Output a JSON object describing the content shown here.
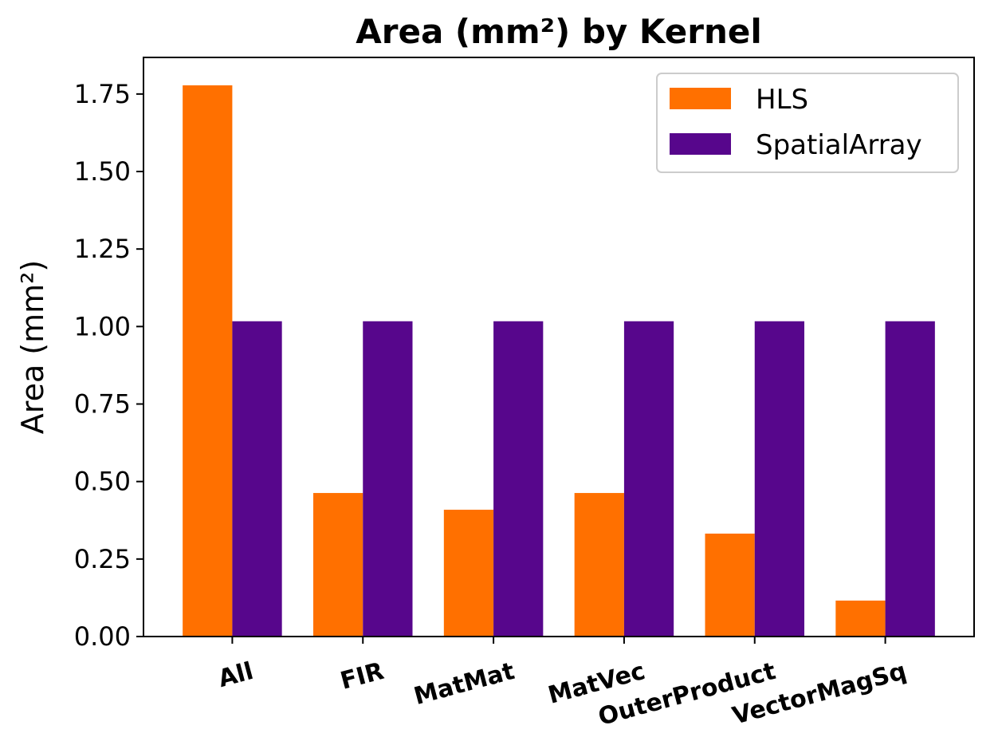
{
  "chart_data": {
    "type": "bar",
    "title": "Area (mm²) by Kernel",
    "xlabel": "",
    "ylabel": "Area (mm²)",
    "categories": [
      "All",
      "FIR",
      "MatMat",
      "MatVec",
      "OuterProduct",
      "VectorMagSq"
    ],
    "series": [
      {
        "name": "HLS",
        "color": "#ff7000",
        "values": [
          1.778,
          0.463,
          0.409,
          0.463,
          0.332,
          0.116
        ]
      },
      {
        "name": "SpatialArray",
        "color": "#57068c",
        "values": [
          1.017,
          1.017,
          1.017,
          1.017,
          1.017,
          1.017
        ]
      }
    ],
    "ylim": [
      0,
      1.868
    ],
    "yticks": [
      0,
      0.25,
      0.5,
      0.75,
      1.0,
      1.25,
      1.5,
      1.75
    ],
    "ytick_labels": [
      "0.00",
      "0.25",
      "0.50",
      "0.75",
      "1.00",
      "1.25",
      "1.50",
      "1.75"
    ],
    "grid": false,
    "legend_position": "top-right"
  }
}
